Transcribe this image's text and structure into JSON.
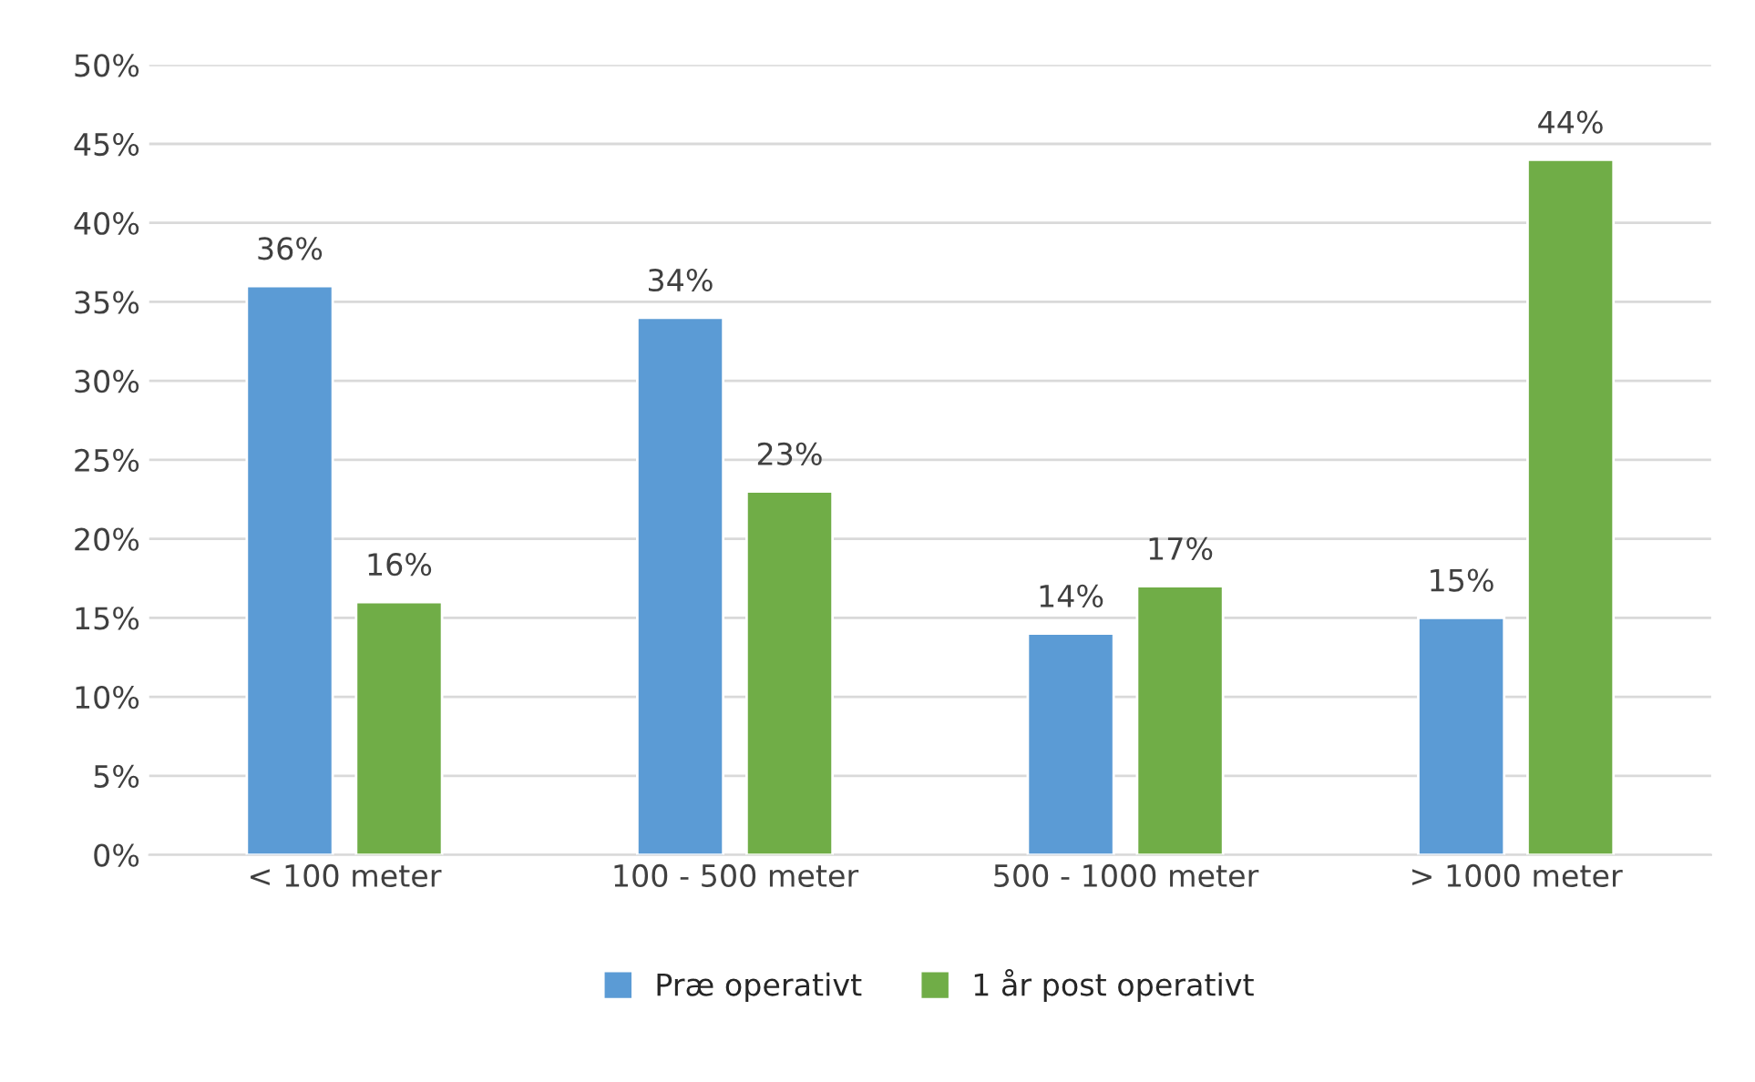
{
  "chart_data": {
    "type": "bar",
    "categories": [
      "< 100 meter",
      "100 - 500 meter",
      "500 - 1000 meter",
      "> 1000 meter"
    ],
    "series": [
      {
        "name": "Præ operativt",
        "color": "#5b9bd5",
        "values": [
          36,
          34,
          14,
          15
        ]
      },
      {
        "name": "1 år post operativt",
        "color": "#70ad47",
        "values": [
          16,
          23,
          17,
          44
        ]
      }
    ],
    "ylim": [
      0,
      50
    ],
    "yticks": [
      {
        "value": 0,
        "label": "0%"
      },
      {
        "value": 5,
        "label": "5%"
      },
      {
        "value": 10,
        "label": "10%"
      },
      {
        "value": 15,
        "label": "15%"
      },
      {
        "value": 20,
        "label": "20%"
      },
      {
        "value": 25,
        "label": "25%"
      },
      {
        "value": 30,
        "label": "30%"
      },
      {
        "value": 35,
        "label": "35%"
      },
      {
        "value": 40,
        "label": "40%"
      },
      {
        "value": 45,
        "label": "45%"
      },
      {
        "value": 50,
        "label": "50%"
      }
    ],
    "value_labels": [
      [
        "36%",
        "34%",
        "14%",
        "15%"
      ],
      [
        "16%",
        "23%",
        "17%",
        "44%"
      ]
    ],
    "grid": "y",
    "legend": "bottom"
  }
}
